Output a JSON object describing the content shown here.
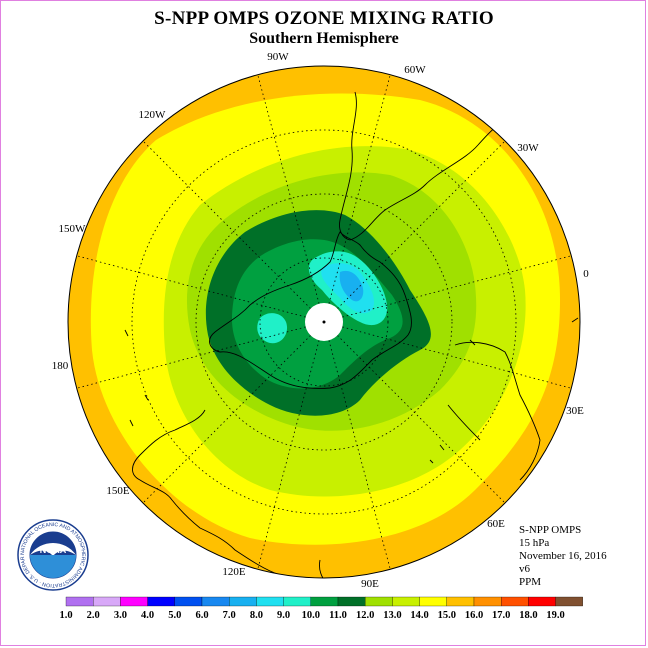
{
  "title": "S-NPP OMPS OZONE MIXING RATIO",
  "subtitle": "Southern Hemisphere",
  "longitude_labels": [
    {
      "text": "90W"
    },
    {
      "text": "60W"
    },
    {
      "text": "30W"
    },
    {
      "text": "0"
    },
    {
      "text": "30E"
    },
    {
      "text": "60E"
    },
    {
      "text": "90E"
    },
    {
      "text": "120E"
    },
    {
      "text": "150E"
    },
    {
      "text": "180"
    },
    {
      "text": "150W"
    },
    {
      "text": "120W"
    }
  ],
  "info": {
    "instrument": "S-NPP OMPS",
    "level": "15 hPa",
    "date": "November 16, 2016",
    "version": "v6",
    "units": "PPM"
  },
  "logo": {
    "text": "NOAA",
    "ring_text": "NATIONAL OCEANIC AND ATMOSPHERIC ADMINISTRATION · U.S. DEPARTMENT OF COMMERCE"
  },
  "colorbar": {
    "labels": [
      "1.0",
      "2.0",
      "3.0",
      "4.0",
      "5.0",
      "6.0",
      "7.0",
      "8.0",
      "9.0",
      "10.0",
      "11.0",
      "12.0",
      "13.0",
      "14.0",
      "15.0",
      "16.0",
      "17.0",
      "18.0",
      "19.0"
    ],
    "colors": [
      "#b070f0",
      "#d8a8f8",
      "#ff00ff",
      "#0000ff",
      "#0050f0",
      "#1888f0",
      "#18b0f0",
      "#20e0f0",
      "#20f0c8",
      "#00a040",
      "#007028",
      "#a0e000",
      "#c8f000",
      "#ffff00",
      "#ffc000",
      "#ff9000",
      "#ff5000",
      "#ff0000",
      "#805030"
    ]
  },
  "map_colors": {
    "outer": "#ffc000",
    "yellow": "#ffff00",
    "lightgreen": "#c8f000",
    "green": "#a0e000",
    "medgreen": "#00a040",
    "darkgreen": "#007028",
    "cyan": "#20f0c8",
    "lightblue": "#20e0f0",
    "blue": "#18b0f0"
  }
}
